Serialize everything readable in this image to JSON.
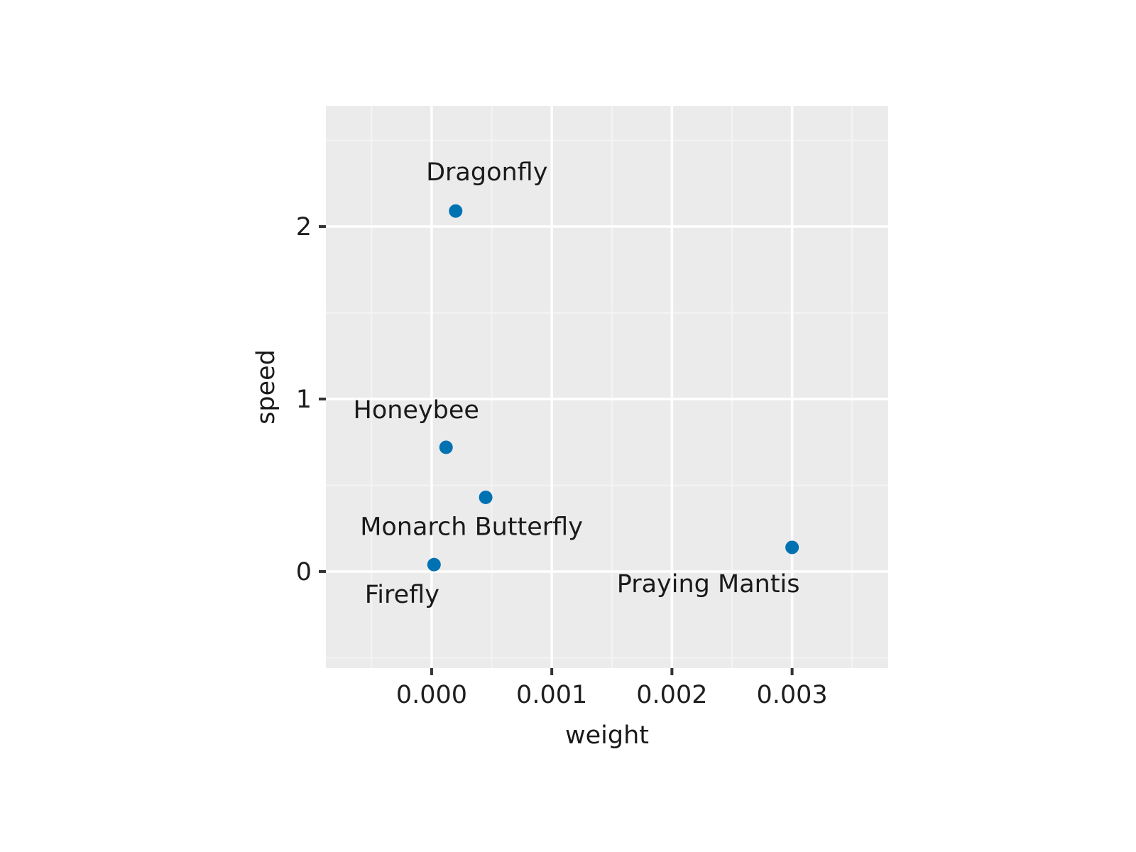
{
  "chart_data": {
    "type": "scatter",
    "title": "",
    "xlabel": "weight",
    "ylabel": "speed",
    "xlim": [
      -0.00088,
      0.0038
    ],
    "ylim": [
      -0.56,
      2.7
    ],
    "x_ticks": [
      0.0,
      0.001,
      0.002,
      0.003
    ],
    "x_tick_labels": [
      "0.000",
      "0.001",
      "0.002",
      "0.003"
    ],
    "y_ticks": [
      0,
      1,
      2
    ],
    "y_tick_labels": [
      "0",
      "1",
      "2"
    ],
    "grid": true,
    "legend": "none",
    "colors": {
      "panel_background": "#ebebeb",
      "grid_major": "#ffffff",
      "grid_minor": "#f4f4f4",
      "point": "#0072b2",
      "tick": "#333333"
    },
    "points": [
      {
        "label": "Dragonfly",
        "x": 0.0002,
        "y": 2.09
      },
      {
        "label": "Honeybee",
        "x": 0.00012,
        "y": 0.72
      },
      {
        "label": "Monarch Butterfly",
        "x": 0.00045,
        "y": 0.43
      },
      {
        "label": "Firefly",
        "x": 2e-05,
        "y": 0.04
      },
      {
        "label": "Praying Mantis",
        "x": 0.003,
        "y": 0.14
      }
    ]
  }
}
